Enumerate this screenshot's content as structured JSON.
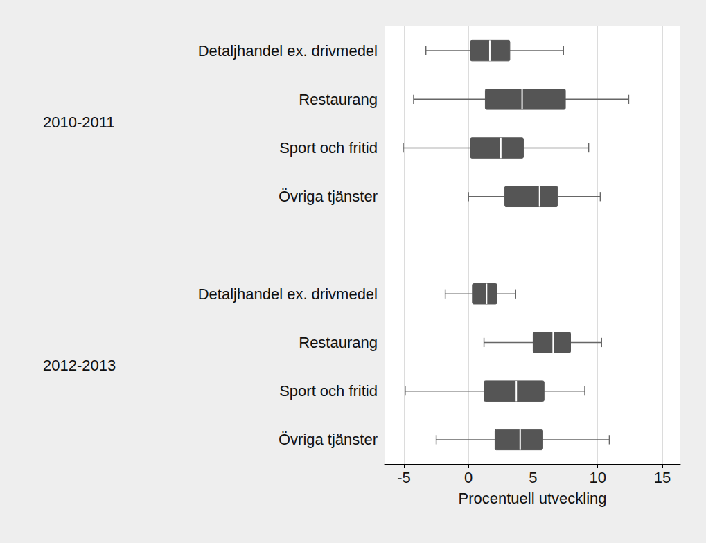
{
  "chart_data": {
    "type": "boxplot",
    "orientation": "horizontal",
    "xlabel": "Procentuell utveckling",
    "xlim": [
      -6.5,
      16.4
    ],
    "xticks": [
      -5,
      0,
      5,
      10,
      15
    ],
    "grid": true,
    "color": "#555555",
    "groups": [
      {
        "name": "2010-2011",
        "categories": [
          "Detaljhandel ex. drivmedel",
          "Restaurang",
          "Sport och fritid",
          "Övriga tjänster"
        ],
        "boxes": [
          [
            -3.3,
            0.15,
            1.65,
            3.2,
            7.35
          ],
          [
            -4.25,
            1.3,
            4.15,
            7.5,
            12.4
          ],
          [
            -5.05,
            0.15,
            2.5,
            4.25,
            9.3
          ],
          [
            0.0,
            2.8,
            5.5,
            6.9,
            10.2
          ]
        ]
      },
      {
        "name": "2012-2013",
        "categories": [
          "Detaljhandel ex. drivmedel",
          "Restaurang",
          "Sport och fritid",
          "Övriga tjänster"
        ],
        "boxes": [
          [
            -1.8,
            0.3,
            1.4,
            2.2,
            3.65
          ],
          [
            1.2,
            5.0,
            6.55,
            7.9,
            10.3
          ],
          [
            -4.9,
            1.2,
            3.7,
            5.85,
            9.0
          ],
          [
            -2.5,
            2.05,
            4.0,
            5.75,
            10.9
          ]
        ]
      }
    ]
  }
}
